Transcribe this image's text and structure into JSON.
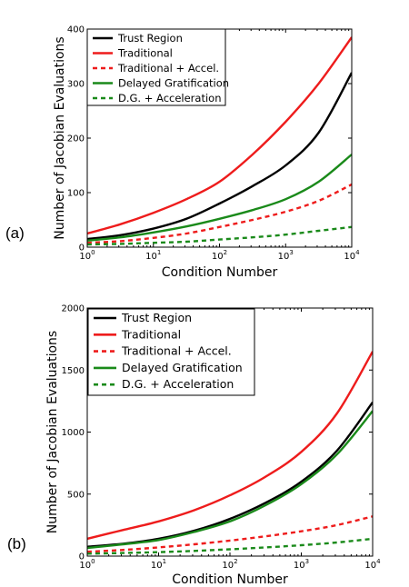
{
  "chart_data": [
    {
      "panel_label": "(a)",
      "type": "line",
      "xscale": "log",
      "xlim": [
        1,
        10000
      ],
      "ylim": [
        0,
        400
      ],
      "xlabel": "Condition Number",
      "ylabel": "Number of Jacobian Evaluations",
      "xticks": [
        {
          "base": "10",
          "exp": "0",
          "v": 1
        },
        {
          "base": "10",
          "exp": "1",
          "v": 10
        },
        {
          "base": "10",
          "exp": "2",
          "v": 100
        },
        {
          "base": "10",
          "exp": "3",
          "v": 1000
        },
        {
          "base": "10",
          "exp": "4",
          "v": 10000
        }
      ],
      "yticks": [
        {
          "label": "0",
          "v": 0
        },
        {
          "label": "100",
          "v": 100
        },
        {
          "label": "200",
          "v": 200
        },
        {
          "label": "300",
          "v": 300
        },
        {
          "label": "400",
          "v": 400
        }
      ],
      "grid": false,
      "legend": "top-left",
      "x": [
        1,
        3.16,
        10,
        31.6,
        100,
        316,
        1000,
        3162,
        10000
      ],
      "series": [
        {
          "name": "Trust Region",
          "color": "#000000",
          "dash": "solid",
          "values": [
            15,
            22,
            34,
            52,
            80,
            112,
            150,
            210,
            320
          ]
        },
        {
          "name": "Traditional",
          "color": "#ee1c1c",
          "dash": "solid",
          "values": [
            25,
            42,
            63,
            88,
            120,
            170,
            230,
            300,
            385
          ]
        },
        {
          "name": "Traditional + Accel.",
          "color": "#ee1c1c",
          "dash": "dashed",
          "values": [
            8,
            11,
            17,
            25,
            37,
            50,
            65,
            85,
            115
          ]
        },
        {
          "name": "Delayed Gratification",
          "color": "#1a8a1a",
          "dash": "solid",
          "values": [
            12,
            18,
            27,
            38,
            52,
            68,
            88,
            120,
            170
          ]
        },
        {
          "name": "D.G. + Acceleration",
          "color": "#1a8a1a",
          "dash": "dashed",
          "values": [
            5,
            6,
            8,
            10,
            14,
            18,
            23,
            30,
            37
          ]
        }
      ]
    },
    {
      "panel_label": "(b)",
      "type": "line",
      "xscale": "log",
      "xlim": [
        1,
        10000
      ],
      "ylim": [
        0,
        2000
      ],
      "xlabel": "Condition Number",
      "ylabel": "Number of Jacobian Evaluations",
      "xticks": [
        {
          "base": "10",
          "exp": "0",
          "v": 1
        },
        {
          "base": "10",
          "exp": "1",
          "v": 10
        },
        {
          "base": "10",
          "exp": "2",
          "v": 100
        },
        {
          "base": "10",
          "exp": "3",
          "v": 1000
        },
        {
          "base": "10",
          "exp": "4",
          "v": 10000
        }
      ],
      "yticks": [
        {
          "label": "0",
          "v": 0
        },
        {
          "label": "500",
          "v": 500
        },
        {
          "label": "1000",
          "v": 1000
        },
        {
          "label": "1500",
          "v": 1500
        },
        {
          "label": "2000",
          "v": 2000
        }
      ],
      "grid": false,
      "legend": "top-left",
      "x": [
        1,
        3.16,
        10,
        31.6,
        100,
        316,
        1000,
        3162,
        10000
      ],
      "series": [
        {
          "name": "Trust Region",
          "color": "#000000",
          "dash": "solid",
          "values": [
            75,
            100,
            140,
            205,
            300,
            430,
            600,
            850,
            1240
          ]
        },
        {
          "name": "Traditional",
          "color": "#ee1c1c",
          "dash": "solid",
          "values": [
            140,
            210,
            280,
            370,
            490,
            640,
            840,
            1150,
            1650
          ]
        },
        {
          "name": "Traditional + Accel.",
          "color": "#ee1c1c",
          "dash": "dashed",
          "values": [
            35,
            50,
            70,
            95,
            125,
            160,
            200,
            250,
            320
          ]
        },
        {
          "name": "Delayed Gratification",
          "color": "#1a8a1a",
          "dash": "solid",
          "values": [
            65,
            95,
            130,
            195,
            280,
            410,
            580,
            820,
            1170
          ]
        },
        {
          "name": "D.G. + Acceleration",
          "color": "#1a8a1a",
          "dash": "dashed",
          "values": [
            20,
            25,
            32,
            42,
            55,
            70,
            88,
            110,
            140
          ]
        }
      ]
    }
  ]
}
